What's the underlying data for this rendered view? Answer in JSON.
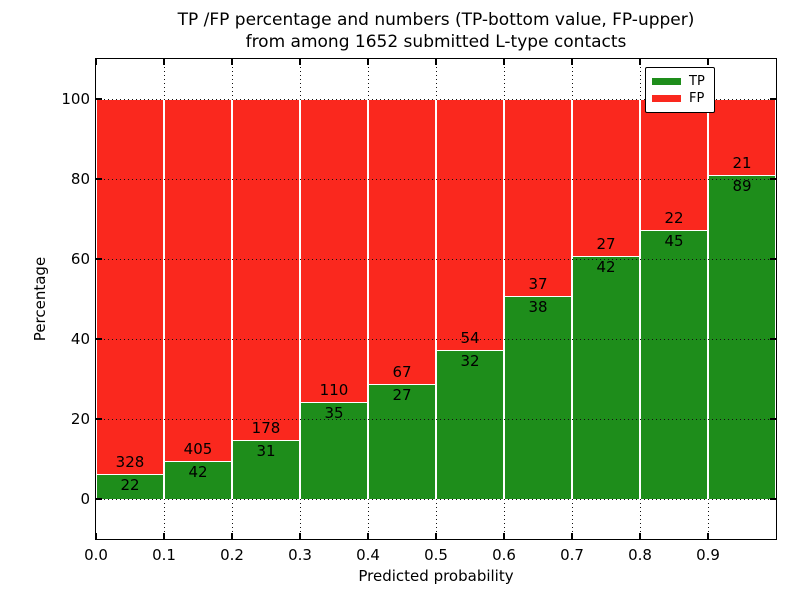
{
  "title": {
    "line1": "TP /FP percentage and numbers (TP-bottom value, FP-upper)",
    "line2": "from among 1652 submitted L-type contacts"
  },
  "axes": {
    "xlabel": "Predicted probability",
    "ylabel": "Percentage",
    "x_tick_labels": [
      "0.0",
      "0.1",
      "0.2",
      "0.3",
      "0.4",
      "0.5",
      "0.6",
      "0.7",
      "0.8",
      "0.9"
    ],
    "y_tick_labels": [
      "0",
      "20",
      "40",
      "60",
      "80",
      "100"
    ],
    "y_tick_values": [
      0,
      20,
      40,
      60,
      80,
      100
    ]
  },
  "legend": {
    "position": "upper right",
    "items": [
      {
        "label": "TP",
        "color": "#1e8d1b"
      },
      {
        "label": "FP",
        "color": "#fa281e"
      }
    ]
  },
  "chart_data": {
    "type": "bar",
    "stacked": true,
    "normalized_to_percent": true,
    "title": "TP /FP percentage and numbers (TP-bottom value, FP-upper) from among 1652 submitted L-type contacts",
    "xlabel": "Predicted probability",
    "ylabel": "Percentage",
    "categories": [
      0.0,
      0.1,
      0.2,
      0.3,
      0.4,
      0.5,
      0.6,
      0.7,
      0.8,
      0.9
    ],
    "bar_width": 0.1,
    "series": [
      {
        "name": "TP",
        "color": "#1e8d1b",
        "counts": [
          22,
          42,
          31,
          35,
          27,
          32,
          38,
          42,
          45,
          89
        ]
      },
      {
        "name": "FP",
        "color": "#fa281e",
        "counts": [
          328,
          405,
          178,
          110,
          67,
          54,
          37,
          27,
          22,
          21
        ]
      }
    ],
    "tp_percent_of_bin": [
      6.29,
      9.4,
      14.83,
      24.14,
      28.72,
      37.21,
      50.67,
      60.87,
      67.16,
      80.91
    ],
    "total_contacts": 1652,
    "xlim": [
      0.0,
      1.0
    ],
    "ylim": [
      -10,
      110
    ],
    "grid": true,
    "grid_style": "dotted",
    "legend_position": "upper right"
  }
}
